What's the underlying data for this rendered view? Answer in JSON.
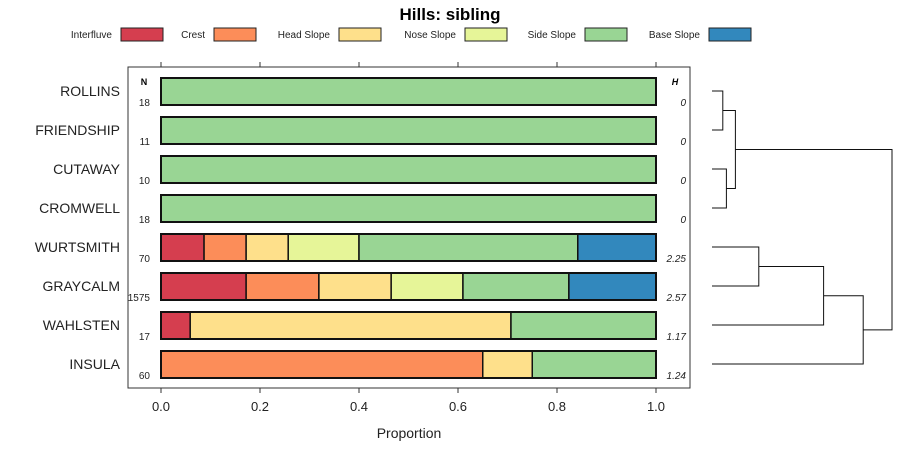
{
  "chart_data": {
    "type": "bar",
    "subtype": "stacked-horizontal-proportion",
    "title": "Hills: sibling",
    "xlabel": "Proportion",
    "ylabel": "",
    "xlim": [
      0,
      1
    ],
    "xticks": [
      "0.0",
      "0.2",
      "0.4",
      "0.6",
      "0.8",
      "1.0"
    ],
    "legend_position": "top",
    "n_header": "N",
    "h_header": "H",
    "series": [
      {
        "name": "Interfluve",
        "color": "#D53E4F"
      },
      {
        "name": "Crest",
        "color": "#FC8D59"
      },
      {
        "name": "Head Slope",
        "color": "#FEE08B"
      },
      {
        "name": "Nose Slope",
        "color": "#E6F598"
      },
      {
        "name": "Side Slope",
        "color": "#99D594"
      },
      {
        "name": "Base Slope",
        "color": "#3288BD"
      }
    ],
    "rows": [
      {
        "label": "ROLLINS",
        "n": "18",
        "h": "0",
        "values": [
          0,
          0,
          0,
          0,
          1,
          0
        ]
      },
      {
        "label": "FRIENDSHIP",
        "n": "11",
        "h": "0",
        "values": [
          0,
          0,
          0,
          0,
          1,
          0
        ]
      },
      {
        "label": "CUTAWAY",
        "n": "10",
        "h": "0",
        "values": [
          0,
          0,
          0,
          0,
          1,
          0
        ]
      },
      {
        "label": "CROMWELL",
        "n": "18",
        "h": "0",
        "values": [
          0,
          0,
          0,
          0,
          1,
          0
        ]
      },
      {
        "label": "WURTSMITH",
        "n": "70",
        "h": "2.25",
        "values": [
          0.087,
          0.085,
          0.085,
          0.143,
          0.442,
          0.158
        ]
      },
      {
        "label": "GRAYCALM",
        "n": "1575",
        "h": "2.57",
        "values": [
          0.172,
          0.147,
          0.146,
          0.145,
          0.214,
          0.176
        ]
      },
      {
        "label": "WAHLSTEN",
        "n": "17",
        "h": "1.17",
        "values": [
          0.059,
          0,
          0.648,
          0,
          0.293,
          0
        ]
      },
      {
        "label": "INSULA",
        "n": "60",
        "h": "1.24",
        "values": [
          0,
          0.65,
          0.1,
          0,
          0.25,
          0
        ]
      }
    ],
    "dendrogram": {
      "merges": [
        {
          "a": 0,
          "b": 1,
          "height": 0.06
        },
        {
          "a": 2,
          "b": 3,
          "height": 0.08
        },
        {
          "a": "m0",
          "b": "m1",
          "height": 0.13
        },
        {
          "a": 4,
          "b": 5,
          "height": 0.26
        },
        {
          "a": "m3",
          "b": 6,
          "height": 0.62
        },
        {
          "a": "m4",
          "b": 7,
          "height": 0.84
        },
        {
          "a": "m2",
          "b": "m5",
          "height": 1.0
        }
      ]
    }
  }
}
